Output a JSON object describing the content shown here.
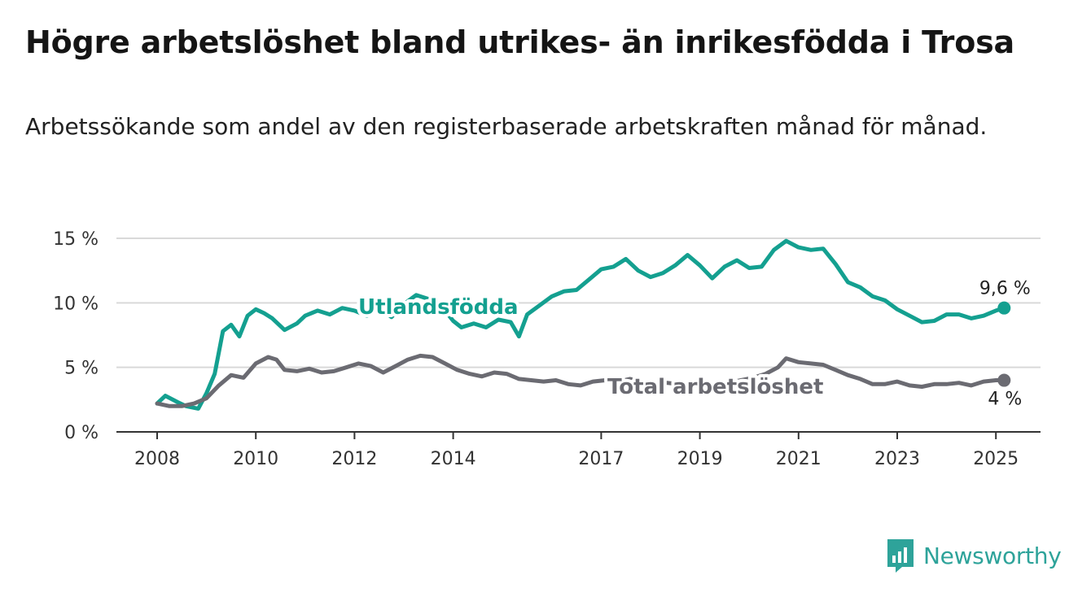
{
  "header": {
    "title": "Högre arbetslöshet bland utrikes- än inrikesfödda i Trosa",
    "subtitle": "Arbetssökande som andel av den registerbaserade arbetskraften månad för månad."
  },
  "brand": {
    "name": "Newsworthy",
    "icon": "newsworthy-logo-icon",
    "color": "#2ea39a"
  },
  "chart_data": {
    "type": "line",
    "ylim": [
      0,
      15
    ],
    "xlim": [
      "2008-01",
      "2025-06"
    ],
    "grid": true,
    "y_ticks": [
      {
        "value": 0,
        "label": "0 %"
      },
      {
        "value": 5,
        "label": "5 %"
      },
      {
        "value": 10,
        "label": "10 %"
      },
      {
        "value": 15,
        "label": "15 %"
      }
    ],
    "x_ticks": [
      {
        "date": "2008-01",
        "label": "2008"
      },
      {
        "date": "2010-01",
        "label": "2010"
      },
      {
        "date": "2012-01",
        "label": "2012"
      },
      {
        "date": "2014-01",
        "label": "2014"
      },
      {
        "date": "2017-01",
        "label": "2017"
      },
      {
        "date": "2019-01",
        "label": "2019"
      },
      {
        "date": "2021-01",
        "label": "2021"
      },
      {
        "date": "2023-01",
        "label": "2023"
      },
      {
        "date": "2025-01",
        "label": "2025"
      }
    ],
    "series": [
      {
        "name": "Utlandsfödda",
        "color": "#14a090",
        "label_at": "2012-01",
        "end_label": "9,6 %",
        "points": [
          [
            "2008-01",
            2.2
          ],
          [
            "2008-03",
            2.8
          ],
          [
            "2008-06",
            2.3
          ],
          [
            "2008-08",
            2.0
          ],
          [
            "2008-11",
            1.8
          ],
          [
            "2009-01",
            3.0
          ],
          [
            "2009-03",
            4.5
          ],
          [
            "2009-05",
            7.8
          ],
          [
            "2009-07",
            8.3
          ],
          [
            "2009-09",
            7.4
          ],
          [
            "2009-11",
            9.0
          ],
          [
            "2010-01",
            9.5
          ],
          [
            "2010-03",
            9.2
          ],
          [
            "2010-05",
            8.8
          ],
          [
            "2010-08",
            7.9
          ],
          [
            "2010-11",
            8.4
          ],
          [
            "2011-01",
            9.0
          ],
          [
            "2011-04",
            9.4
          ],
          [
            "2011-07",
            9.1
          ],
          [
            "2011-10",
            9.6
          ],
          [
            "2012-01",
            9.4
          ],
          [
            "2012-04",
            9.0
          ],
          [
            "2012-07",
            9.6
          ],
          [
            "2012-10",
            8.9
          ],
          [
            "2013-01",
            9.9
          ],
          [
            "2013-04",
            10.6
          ],
          [
            "2013-07",
            10.3
          ],
          [
            "2013-10",
            9.8
          ],
          [
            "2014-01",
            8.6
          ],
          [
            "2014-03",
            8.1
          ],
          [
            "2014-06",
            8.4
          ],
          [
            "2014-09",
            8.1
          ],
          [
            "2014-12",
            8.7
          ],
          [
            "2015-03",
            8.5
          ],
          [
            "2015-05",
            7.4
          ],
          [
            "2015-07",
            9.1
          ],
          [
            "2015-10",
            9.8
          ],
          [
            "2016-01",
            10.5
          ],
          [
            "2016-04",
            10.9
          ],
          [
            "2016-07",
            11.0
          ],
          [
            "2016-10",
            11.8
          ],
          [
            "2017-01",
            12.6
          ],
          [
            "2017-04",
            12.8
          ],
          [
            "2017-07",
            13.4
          ],
          [
            "2017-10",
            12.5
          ],
          [
            "2018-01",
            12.0
          ],
          [
            "2018-04",
            12.3
          ],
          [
            "2018-07",
            12.9
          ],
          [
            "2018-10",
            13.7
          ],
          [
            "2019-01",
            12.9
          ],
          [
            "2019-04",
            11.9
          ],
          [
            "2019-07",
            12.8
          ],
          [
            "2019-10",
            13.3
          ],
          [
            "2020-01",
            12.7
          ],
          [
            "2020-04",
            12.8
          ],
          [
            "2020-07",
            14.1
          ],
          [
            "2020-10",
            14.8
          ],
          [
            "2021-01",
            14.3
          ],
          [
            "2021-04",
            14.1
          ],
          [
            "2021-07",
            14.2
          ],
          [
            "2021-10",
            13.0
          ],
          [
            "2022-01",
            11.6
          ],
          [
            "2022-04",
            11.2
          ],
          [
            "2022-07",
            10.5
          ],
          [
            "2022-10",
            10.2
          ],
          [
            "2023-01",
            9.5
          ],
          [
            "2023-04",
            9.0
          ],
          [
            "2023-07",
            8.5
          ],
          [
            "2023-10",
            8.6
          ],
          [
            "2024-01",
            9.1
          ],
          [
            "2024-04",
            9.1
          ],
          [
            "2024-07",
            8.8
          ],
          [
            "2024-10",
            9.0
          ],
          [
            "2025-01",
            9.4
          ],
          [
            "2025-03",
            9.6
          ]
        ]
      },
      {
        "name": "Total arbetslöshet",
        "color": "#6b6b72",
        "label_at": "2018-08",
        "end_label": "4 %",
        "points": [
          [
            "2008-01",
            2.2
          ],
          [
            "2008-04",
            2.0
          ],
          [
            "2008-07",
            2.0
          ],
          [
            "2008-10",
            2.2
          ],
          [
            "2009-01",
            2.6
          ],
          [
            "2009-04",
            3.6
          ],
          [
            "2009-07",
            4.4
          ],
          [
            "2009-10",
            4.2
          ],
          [
            "2010-01",
            5.3
          ],
          [
            "2010-04",
            5.8
          ],
          [
            "2010-06",
            5.6
          ],
          [
            "2010-08",
            4.8
          ],
          [
            "2010-11",
            4.7
          ],
          [
            "2011-02",
            4.9
          ],
          [
            "2011-05",
            4.6
          ],
          [
            "2011-08",
            4.7
          ],
          [
            "2011-11",
            5.0
          ],
          [
            "2012-02",
            5.3
          ],
          [
            "2012-05",
            5.1
          ],
          [
            "2012-08",
            4.6
          ],
          [
            "2012-11",
            5.1
          ],
          [
            "2013-02",
            5.6
          ],
          [
            "2013-05",
            5.9
          ],
          [
            "2013-08",
            5.8
          ],
          [
            "2013-11",
            5.3
          ],
          [
            "2014-02",
            4.8
          ],
          [
            "2014-05",
            4.5
          ],
          [
            "2014-08",
            4.3
          ],
          [
            "2014-11",
            4.6
          ],
          [
            "2015-02",
            4.5
          ],
          [
            "2015-05",
            4.1
          ],
          [
            "2015-08",
            4.0
          ],
          [
            "2015-11",
            3.9
          ],
          [
            "2016-02",
            4.0
          ],
          [
            "2016-05",
            3.7
          ],
          [
            "2016-08",
            3.6
          ],
          [
            "2016-11",
            3.9
          ],
          [
            "2017-02",
            4.0
          ],
          [
            "2017-05",
            3.9
          ],
          [
            "2017-08",
            4.1
          ],
          [
            "2017-11",
            3.9
          ],
          [
            "2018-02",
            3.7
          ],
          [
            "2018-05",
            3.8
          ],
          [
            "2018-08",
            3.7
          ],
          [
            "2018-11",
            3.6
          ],
          [
            "2019-02",
            3.6
          ],
          [
            "2019-05",
            3.7
          ],
          [
            "2019-08",
            3.8
          ],
          [
            "2019-11",
            4.0
          ],
          [
            "2020-02",
            4.2
          ],
          [
            "2020-05",
            4.5
          ],
          [
            "2020-08",
            5.0
          ],
          [
            "2020-10",
            5.7
          ],
          [
            "2021-01",
            5.4
          ],
          [
            "2021-04",
            5.3
          ],
          [
            "2021-07",
            5.2
          ],
          [
            "2021-10",
            4.8
          ],
          [
            "2022-01",
            4.4
          ],
          [
            "2022-04",
            4.1
          ],
          [
            "2022-07",
            3.7
          ],
          [
            "2022-10",
            3.7
          ],
          [
            "2023-01",
            3.9
          ],
          [
            "2023-04",
            3.6
          ],
          [
            "2023-07",
            3.5
          ],
          [
            "2023-10",
            3.7
          ],
          [
            "2024-01",
            3.7
          ],
          [
            "2024-04",
            3.8
          ],
          [
            "2024-07",
            3.6
          ],
          [
            "2024-10",
            3.9
          ],
          [
            "2025-01",
            4.0
          ],
          [
            "2025-03",
            4.0
          ]
        ]
      }
    ]
  }
}
